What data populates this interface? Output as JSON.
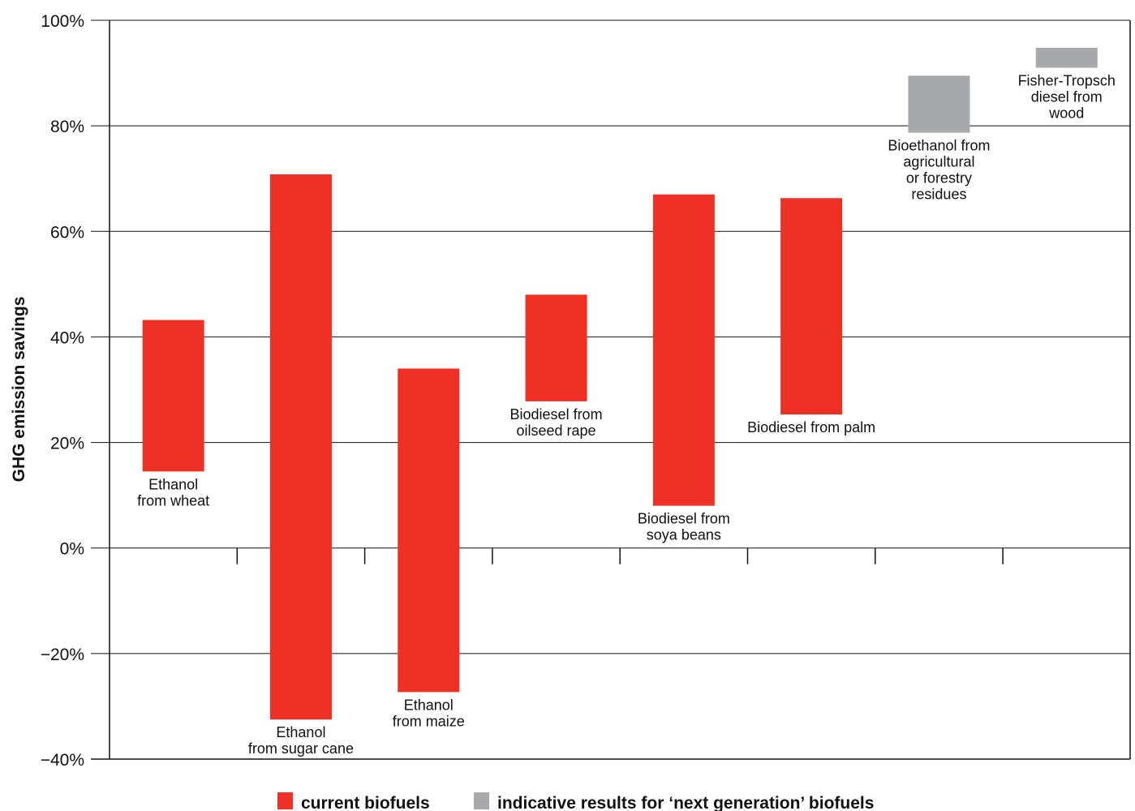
{
  "chart_data": {
    "type": "bar",
    "subtype": "floating-range",
    "ylabel": "GHG emission savings",
    "xlabel": "",
    "ylim": [
      -40,
      100
    ],
    "y_unit": "%",
    "y_ticks": [
      -40,
      -20,
      0,
      20,
      40,
      60,
      80,
      100
    ],
    "y_tick_labels": [
      "−40%",
      "−20%",
      "0%",
      "20%",
      "40%",
      "60%",
      "80%",
      "100%"
    ],
    "grid": true,
    "legend_position": "bottom",
    "legend": [
      {
        "label": "current biofuels",
        "color": "#ee3124"
      },
      {
        "label": "indicative results for ‘next generation’ biofuels",
        "color": "#a7a9ac"
      }
    ],
    "categories": [
      "Ethanol from wheat",
      "Ethanol from sugar cane",
      "Ethanol from maize",
      "Biodiesel from oilseed rape",
      "Biodiesel from soya beans",
      "Biodiesel from palm",
      "Bioethanol from agricultural or forestry residues",
      "Fisher-Tropsch diesel from wood"
    ],
    "series": [
      {
        "name": "current biofuels",
        "color": "#ee3124",
        "ranges": [
          {
            "category": "Ethanol from wheat",
            "low": 14.5,
            "high": 43.2,
            "label_lines": [
              "Ethanol",
              "from wheat"
            ]
          },
          {
            "category": "Ethanol from sugar cane",
            "low": -32.5,
            "high": 70.8,
            "label_lines": [
              "Ethanol",
              "from sugar cane"
            ]
          },
          {
            "category": "Ethanol from maize",
            "low": -27.3,
            "high": 34.0,
            "label_lines": [
              "Ethanol",
              "from maize"
            ]
          },
          {
            "category": "Biodiesel from oilseed rape",
            "low": 27.8,
            "high": 48.0,
            "label_lines": [
              "Biodiesel from",
              "oilseed rape"
            ]
          },
          {
            "category": "Biodiesel from soya beans",
            "low": 8.0,
            "high": 67.0,
            "label_lines": [
              "Biodiesel from",
              "soya beans"
            ]
          },
          {
            "category": "Biodiesel from palm",
            "low": 25.3,
            "high": 66.3,
            "label_lines": [
              "Biodiesel from palm"
            ]
          }
        ]
      },
      {
        "name": "indicative results for ‘next generation’ biofuels",
        "color": "#a7a9ac",
        "ranges": [
          {
            "category": "Bioethanol from agricultural or forestry residues",
            "low": 78.7,
            "high": 89.5,
            "label_lines": [
              "Bioethanol from",
              "agricultural",
              "or forestry",
              "residues"
            ]
          },
          {
            "category": "Fisher-Tropsch diesel from wood",
            "low": 91.0,
            "high": 94.8,
            "label_lines": [
              "Fisher-Tropsch",
              "diesel from",
              "wood"
            ]
          }
        ]
      }
    ]
  }
}
